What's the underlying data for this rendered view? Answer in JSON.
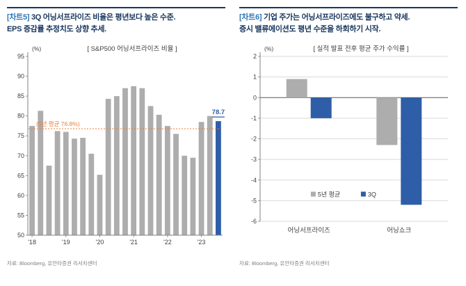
{
  "panels": [
    {
      "tag": "[차트5]",
      "title_line1": "3Q 어닝서프라이즈 비율은 평년보다 높은 수준.",
      "title_line2": "EPS 증감률 추정치도 상향 추세.",
      "source": "자료: Bloomberg, 유안타증권 리서치센터"
    },
    {
      "tag": "[차트6]",
      "title_line1": "기업 주가는 어닝서프라이즈에도 불구하고 약세.",
      "title_line2": "증시 밸류에이션도 평년 수준을 하회하기 시작.",
      "source": "자료: Bloomberg, 유안타증권 리서치센터"
    }
  ],
  "colors": {
    "navy": "#17365D",
    "tag_blue": "#2E75B6",
    "axis_gray": "#808080",
    "text_gray": "#404040",
    "grid_gray": "#D9D9D9",
    "source_gray": "#7F7F7F"
  },
  "chart_data": [
    {
      "type": "bar",
      "title": "[ S&P500 어닝서프라이즈 비율 ]",
      "unit": "(%)",
      "ylim": [
        50,
        95
      ],
      "yticks": [
        50,
        55,
        60,
        65,
        70,
        75,
        80,
        85,
        90,
        95
      ],
      "x_tick_labels": [
        "'18",
        "'19",
        "'20",
        "'21",
        "'22",
        "'23"
      ],
      "x_tick_indices": [
        0,
        4,
        8,
        12,
        16,
        20
      ],
      "values": [
        77.5,
        81.3,
        67.5,
        76.2,
        76.0,
        74.3,
        74.5,
        70.5,
        65.2,
        84.3,
        85.0,
        87.0,
        87.5,
        87.0,
        82.5,
        80.3,
        77.5,
        75.5,
        70.0,
        69.5,
        78.5,
        80.0,
        78.7
      ],
      "bar_color": "#ADADAD",
      "highlight_index": 22,
      "highlight_color": "#2F5EA8",
      "highlight_label": "78.7",
      "average_line": {
        "value": 76.8,
        "label": "(5년 평균 76.8%)",
        "color": "#ED7D31"
      },
      "grid": false,
      "legend": "none"
    },
    {
      "type": "bar",
      "title": "[ 실적 발표 전후 평균 주가 수익률 ]",
      "unit": "(%)",
      "ylim": [
        -6,
        2
      ],
      "yticks": [
        2,
        1,
        0,
        -1,
        -2,
        -3,
        -4,
        -5,
        -6
      ],
      "categories": [
        "어닝서프라이즈",
        "어닝쇼크"
      ],
      "series": [
        {
          "name": "5년 평균",
          "color": "#ADADAD",
          "values": [
            0.9,
            -2.3
          ]
        },
        {
          "name": "3Q",
          "color": "#2F5EA8",
          "values": [
            -1.0,
            -5.2
          ]
        }
      ],
      "grid": true,
      "legend_position": "inside-bottom"
    }
  ]
}
